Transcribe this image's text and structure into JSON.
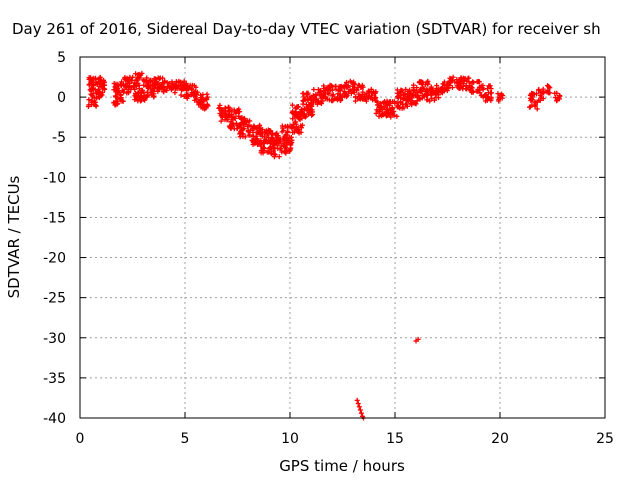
{
  "chart_data": {
    "type": "scatter",
    "title": "Day 261 of 2016, Sidereal Day-to-day VTEC variation (SDTVAR) for receiver sh",
    "xlabel": "GPS time / hours",
    "ylabel": "SDTVAR / TECUs",
    "xlim": [
      0,
      25
    ],
    "ylim": [
      -40,
      5
    ],
    "xticks": [
      0,
      5,
      10,
      15,
      20,
      25
    ],
    "yticks": [
      5,
      0,
      -5,
      -10,
      -15,
      -20,
      -25,
      -30,
      -35,
      -40
    ],
    "grid": true,
    "marker": "+",
    "color": "#ff0000",
    "series": [
      {
        "name": "SDTVAR",
        "bands": [
          [
            0.4,
            0.8,
            -1.5,
            2.5
          ],
          [
            0.8,
            1.2,
            -0.5,
            2.5
          ],
          [
            1.6,
            2.1,
            -1.0,
            2.0
          ],
          [
            2.1,
            2.6,
            0.5,
            2.5
          ],
          [
            2.6,
            3.1,
            -0.5,
            3.0
          ],
          [
            3.1,
            3.6,
            0.0,
            2.5
          ],
          [
            3.6,
            4.1,
            0.5,
            2.5
          ],
          [
            4.1,
            4.6,
            0.5,
            2.0
          ],
          [
            4.6,
            5.1,
            0.0,
            2.0
          ],
          [
            5.1,
            5.6,
            -0.5,
            1.5
          ],
          [
            5.6,
            6.1,
            -1.5,
            0.5
          ],
          [
            6.6,
            7.1,
            -3.0,
            -1.0
          ],
          [
            7.1,
            7.6,
            -4.0,
            -1.5
          ],
          [
            7.6,
            8.1,
            -5.0,
            -2.5
          ],
          [
            8.1,
            8.6,
            -6.0,
            -3.5
          ],
          [
            8.6,
            9.1,
            -7.0,
            -4.0
          ],
          [
            9.1,
            9.6,
            -7.5,
            -4.5
          ],
          [
            9.6,
            10.1,
            -7.0,
            -3.5
          ],
          [
            10.1,
            10.6,
            -4.5,
            -1.0
          ],
          [
            10.6,
            11.1,
            -2.5,
            0.5
          ],
          [
            11.1,
            11.6,
            -1.0,
            1.0
          ],
          [
            11.6,
            12.1,
            -0.5,
            1.5
          ],
          [
            12.1,
            12.6,
            -0.5,
            1.5
          ],
          [
            12.6,
            13.1,
            0.0,
            2.0
          ],
          [
            13.1,
            13.6,
            -0.5,
            1.5
          ],
          [
            13.6,
            14.1,
            -0.5,
            1.0
          ],
          [
            14.1,
            14.6,
            -2.5,
            -0.5
          ],
          [
            14.6,
            15.1,
            -2.5,
            -0.5
          ],
          [
            15.1,
            15.6,
            -1.5,
            1.0
          ],
          [
            15.6,
            16.1,
            -1.0,
            1.5
          ],
          [
            16.1,
            16.6,
            -0.5,
            2.0
          ],
          [
            16.6,
            17.1,
            -0.5,
            1.5
          ],
          [
            17.1,
            17.6,
            0.5,
            2.0
          ],
          [
            17.6,
            18.1,
            1.0,
            2.5
          ],
          [
            18.1,
            18.6,
            1.0,
            2.5
          ],
          [
            18.6,
            19.1,
            0.5,
            2.0
          ],
          [
            19.1,
            19.6,
            -0.5,
            1.5
          ],
          [
            19.9,
            20.2,
            -0.5,
            0.5
          ],
          [
            21.4,
            21.8,
            -1.5,
            0.5
          ],
          [
            21.8,
            22.1,
            -0.5,
            1.0
          ],
          [
            22.1,
            22.4,
            0.5,
            1.5
          ],
          [
            22.6,
            22.9,
            -0.5,
            0.5
          ]
        ],
        "outliers": [
          [
            13.2,
            -37.8
          ],
          [
            13.25,
            -38.2
          ],
          [
            13.3,
            -38.6
          ],
          [
            13.35,
            -39.0
          ],
          [
            13.4,
            -39.4
          ],
          [
            13.45,
            -39.8
          ],
          [
            13.5,
            -40.0
          ],
          [
            16.1,
            -30.2
          ],
          [
            16.0,
            -30.4
          ]
        ]
      }
    ]
  }
}
